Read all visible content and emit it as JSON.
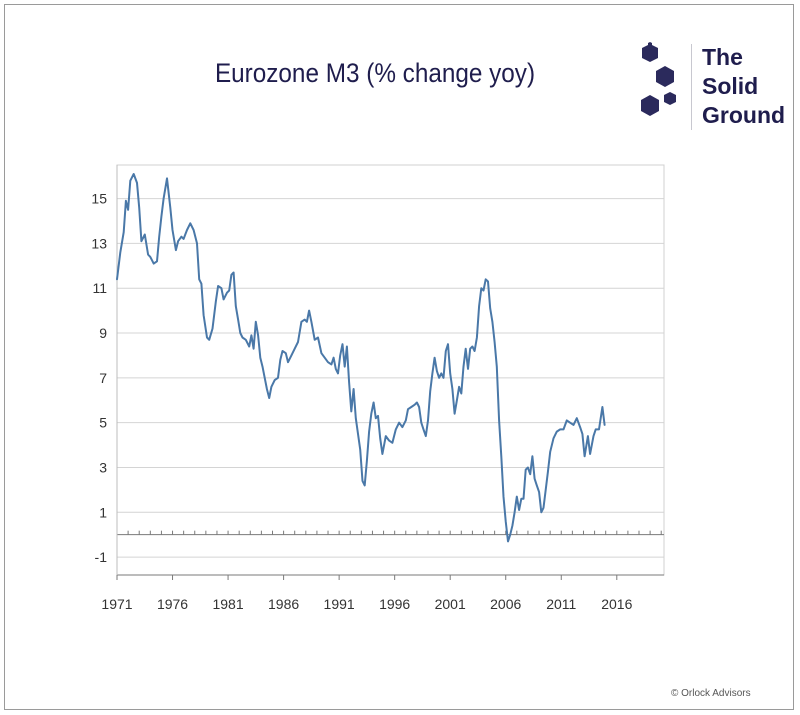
{
  "title": "Eurozone M3 (% change yoy)",
  "logo": {
    "lines": [
      "The",
      "Solid",
      "Ground"
    ],
    "color": "#2b2a5c",
    "icon": "hexagon-cluster-icon"
  },
  "copyright": "© Orlock Advisors",
  "chart_data": {
    "type": "line",
    "title": "Eurozone M3 (% change yoy)",
    "xlabel": "",
    "ylabel": "",
    "xlim": [
      1971,
      2020.25
    ],
    "ylim": [
      -1.8,
      16.5
    ],
    "x_ticks": [
      1971,
      1976,
      1981,
      1986,
      1991,
      1996,
      2001,
      2006,
      2011,
      2016
    ],
    "y_ticks": [
      -1,
      1,
      3,
      5,
      7,
      9,
      11,
      13,
      15
    ],
    "grid": true,
    "zero_line": 0,
    "line_color": "#4a78a8",
    "series": [
      {
        "points": [
          [
            1971.0,
            11.4
          ],
          [
            1971.3,
            12.6
          ],
          [
            1971.6,
            13.5
          ],
          [
            1971.8,
            14.9
          ],
          [
            1972.0,
            14.5
          ],
          [
            1972.2,
            15.8
          ],
          [
            1972.5,
            16.1
          ],
          [
            1972.8,
            15.7
          ],
          [
            1973.0,
            14.6
          ],
          [
            1973.2,
            13.1
          ],
          [
            1973.5,
            13.4
          ],
          [
            1973.8,
            12.5
          ],
          [
            1974.0,
            12.4
          ],
          [
            1974.3,
            12.1
          ],
          [
            1974.6,
            12.2
          ],
          [
            1974.8,
            13.3
          ],
          [
            1975.0,
            14.2
          ],
          [
            1975.2,
            15.0
          ],
          [
            1975.5,
            15.9
          ],
          [
            1975.8,
            14.6
          ],
          [
            1976.0,
            13.6
          ],
          [
            1976.3,
            12.7
          ],
          [
            1976.5,
            13.1
          ],
          [
            1976.8,
            13.3
          ],
          [
            1977.0,
            13.2
          ],
          [
            1977.3,
            13.6
          ],
          [
            1977.6,
            13.9
          ],
          [
            1977.9,
            13.6
          ],
          [
            1978.2,
            13.0
          ],
          [
            1978.4,
            11.4
          ],
          [
            1978.6,
            11.2
          ],
          [
            1978.8,
            9.8
          ],
          [
            1979.1,
            8.8
          ],
          [
            1979.3,
            8.7
          ],
          [
            1979.6,
            9.2
          ],
          [
            1979.9,
            10.4
          ],
          [
            1980.1,
            11.1
          ],
          [
            1980.4,
            11.0
          ],
          [
            1980.6,
            10.5
          ],
          [
            1980.9,
            10.8
          ],
          [
            1981.1,
            10.9
          ],
          [
            1981.3,
            11.6
          ],
          [
            1981.5,
            11.7
          ],
          [
            1981.7,
            10.2
          ],
          [
            1981.9,
            9.6
          ],
          [
            1982.1,
            9.0
          ],
          [
            1982.3,
            8.8
          ],
          [
            1982.6,
            8.7
          ],
          [
            1982.9,
            8.4
          ],
          [
            1983.1,
            8.9
          ],
          [
            1983.3,
            8.3
          ],
          [
            1983.5,
            9.5
          ],
          [
            1983.7,
            8.9
          ],
          [
            1983.9,
            7.9
          ],
          [
            1984.1,
            7.5
          ],
          [
            1984.3,
            7.0
          ],
          [
            1984.5,
            6.5
          ],
          [
            1984.7,
            6.1
          ],
          [
            1984.9,
            6.6
          ],
          [
            1985.2,
            6.9
          ],
          [
            1985.5,
            7.0
          ],
          [
            1985.7,
            7.8
          ],
          [
            1985.9,
            8.2
          ],
          [
            1986.2,
            8.1
          ],
          [
            1986.4,
            7.7
          ],
          [
            1986.7,
            8.0
          ],
          [
            1987.0,
            8.3
          ],
          [
            1987.3,
            8.6
          ],
          [
            1987.6,
            9.5
          ],
          [
            1987.9,
            9.6
          ],
          [
            1988.1,
            9.5
          ],
          [
            1988.3,
            10.0
          ],
          [
            1988.5,
            9.5
          ],
          [
            1988.8,
            8.7
          ],
          [
            1989.1,
            8.8
          ],
          [
            1989.4,
            8.1
          ],
          [
            1989.7,
            7.9
          ],
          [
            1990.0,
            7.7
          ],
          [
            1990.3,
            7.6
          ],
          [
            1990.5,
            7.9
          ],
          [
            1990.7,
            7.4
          ],
          [
            1990.9,
            7.2
          ],
          [
            1991.1,
            8.0
          ],
          [
            1991.3,
            8.5
          ],
          [
            1991.5,
            7.5
          ],
          [
            1991.7,
            8.4
          ],
          [
            1991.9,
            6.8
          ],
          [
            1992.1,
            5.5
          ],
          [
            1992.3,
            6.5
          ],
          [
            1992.5,
            5.2
          ],
          [
            1992.7,
            4.5
          ],
          [
            1992.9,
            3.8
          ],
          [
            1993.1,
            2.4
          ],
          [
            1993.3,
            2.2
          ],
          [
            1993.5,
            3.3
          ],
          [
            1993.7,
            4.6
          ],
          [
            1993.9,
            5.4
          ],
          [
            1994.1,
            5.9
          ],
          [
            1994.3,
            5.2
          ],
          [
            1994.5,
            5.3
          ],
          [
            1994.7,
            4.3
          ],
          [
            1994.9,
            3.6
          ],
          [
            1995.2,
            4.4
          ],
          [
            1995.5,
            4.2
          ],
          [
            1995.8,
            4.1
          ],
          [
            1996.1,
            4.7
          ],
          [
            1996.4,
            5.0
          ],
          [
            1996.7,
            4.8
          ],
          [
            1997.0,
            5.1
          ],
          [
            1997.2,
            5.6
          ],
          [
            1997.5,
            5.7
          ],
          [
            1997.8,
            5.8
          ],
          [
            1998.0,
            5.9
          ],
          [
            1998.2,
            5.7
          ],
          [
            1998.4,
            5.0
          ],
          [
            1998.6,
            4.7
          ],
          [
            1998.8,
            4.4
          ],
          [
            1999.0,
            5.1
          ],
          [
            1999.2,
            6.4
          ],
          [
            1999.4,
            7.2
          ],
          [
            1999.6,
            7.9
          ],
          [
            1999.8,
            7.3
          ],
          [
            2000.0,
            7.0
          ],
          [
            2000.2,
            7.2
          ],
          [
            2000.4,
            7.0
          ],
          [
            2000.6,
            8.2
          ],
          [
            2000.8,
            8.5
          ],
          [
            2001.0,
            7.2
          ],
          [
            2001.2,
            6.5
          ],
          [
            2001.4,
            5.4
          ],
          [
            2001.6,
            6.0
          ],
          [
            2001.8,
            6.6
          ],
          [
            2002.0,
            6.3
          ],
          [
            2002.2,
            7.5
          ],
          [
            2002.4,
            8.3
          ],
          [
            2002.6,
            7.4
          ],
          [
            2002.8,
            8.3
          ],
          [
            2003.0,
            8.4
          ],
          [
            2003.2,
            8.2
          ],
          [
            2003.4,
            8.8
          ],
          [
            2003.6,
            10.2
          ],
          [
            2003.8,
            11.0
          ],
          [
            2004.0,
            10.9
          ],
          [
            2004.2,
            11.4
          ],
          [
            2004.4,
            11.3
          ],
          [
            2004.6,
            10.1
          ],
          [
            2004.8,
            9.5
          ],
          [
            2005.0,
            8.6
          ],
          [
            2005.2,
            7.5
          ],
          [
            2005.4,
            5.1
          ],
          [
            2005.6,
            3.5
          ],
          [
            2005.8,
            1.7
          ],
          [
            2006.0,
            0.6
          ],
          [
            2006.2,
            -0.3
          ],
          [
            2006.4,
            0.0
          ],
          [
            2006.6,
            0.4
          ],
          [
            2006.8,
            1.0
          ],
          [
            2007.0,
            1.7
          ],
          [
            2007.2,
            1.1
          ],
          [
            2007.4,
            1.6
          ],
          [
            2007.6,
            1.6
          ],
          [
            2007.8,
            2.9
          ],
          [
            2008.0,
            3.0
          ],
          [
            2008.2,
            2.7
          ],
          [
            2008.4,
            3.5
          ],
          [
            2008.6,
            2.5
          ],
          [
            2008.8,
            2.2
          ],
          [
            2009.0,
            1.9
          ],
          [
            2009.2,
            1.0
          ],
          [
            2009.4,
            1.2
          ],
          [
            2009.6,
            2.0
          ],
          [
            2009.8,
            2.8
          ],
          [
            2010.0,
            3.7
          ],
          [
            2010.3,
            4.3
          ],
          [
            2010.6,
            4.6
          ],
          [
            2010.9,
            4.7
          ],
          [
            2011.2,
            4.7
          ],
          [
            2011.5,
            5.1
          ],
          [
            2011.8,
            5.0
          ],
          [
            2012.1,
            4.9
          ],
          [
            2012.4,
            5.2
          ],
          [
            2012.7,
            4.8
          ],
          [
            2012.9,
            4.5
          ],
          [
            2013.1,
            3.5
          ],
          [
            2013.4,
            4.4
          ],
          [
            2013.6,
            3.6
          ],
          [
            2013.9,
            4.4
          ],
          [
            2014.1,
            4.7
          ],
          [
            2014.4,
            4.7
          ],
          [
            2014.7,
            5.7
          ],
          [
            2014.9,
            4.9
          ]
        ]
      }
    ]
  }
}
